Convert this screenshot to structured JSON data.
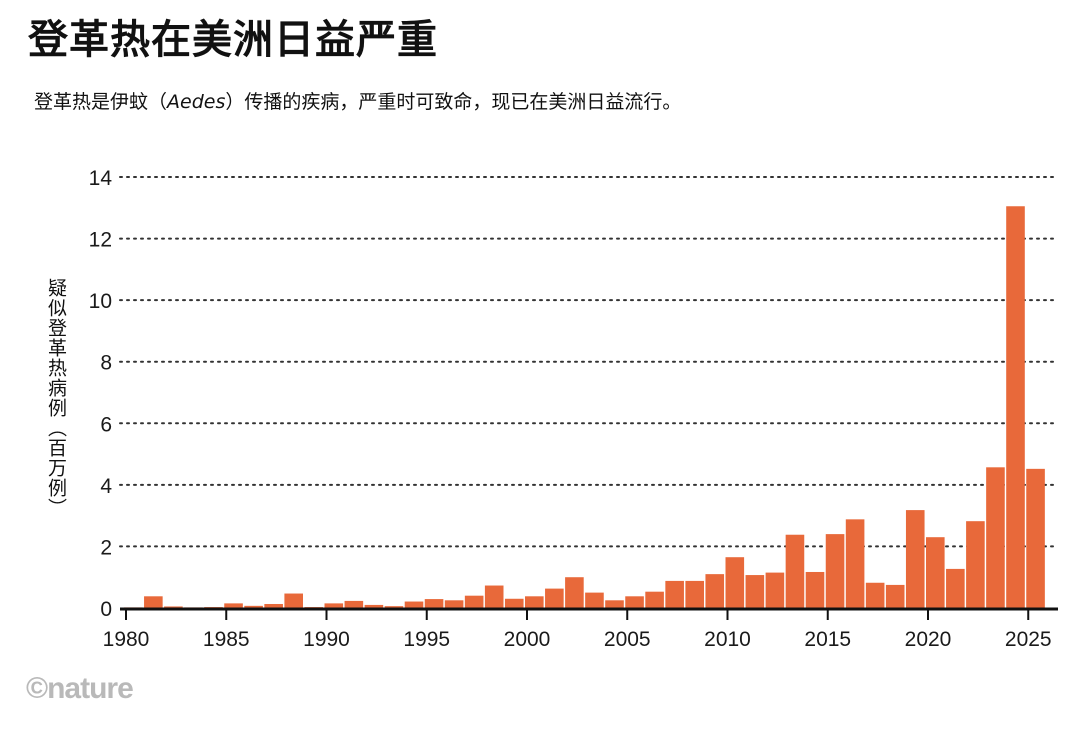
{
  "title": "登革热在美洲日益严重",
  "subtitle_before": "登革热是伊蚊（",
  "subtitle_italic": "Aedes",
  "subtitle_after": "）传播的疾病，严重时可致命，现已在美洲日益流行。",
  "credit": "©nature",
  "colors": {
    "bar": "#e8693a",
    "grid": "#333333",
    "axis": "#111111"
  },
  "chart_data": {
    "type": "bar",
    "title": "登革热在美洲日益严重",
    "ylabel": "疑似登革热病例（百万例）",
    "xlabel": "",
    "ylim": [
      0,
      14
    ],
    "yticks": [
      0,
      2,
      4,
      6,
      8,
      10,
      12,
      14
    ],
    "xticks": [
      1980,
      1985,
      1990,
      1995,
      2000,
      2005,
      2010,
      2015,
      2020,
      2025
    ],
    "grid": "horizontal-dotted",
    "x": [
      1980,
      1981,
      1982,
      1983,
      1984,
      1985,
      1986,
      1987,
      1988,
      1989,
      1990,
      1991,
      1992,
      1993,
      1994,
      1995,
      1996,
      1997,
      1998,
      1999,
      2000,
      2001,
      2002,
      2003,
      2004,
      2005,
      2006,
      2007,
      2008,
      2009,
      2010,
      2011,
      2012,
      2013,
      2014,
      2015,
      2016,
      2017,
      2018,
      2019,
      2020,
      2021,
      2022,
      2023,
      2024,
      2025
    ],
    "values": [
      0.02,
      0.38,
      0.05,
      0.02,
      0.03,
      0.15,
      0.07,
      0.13,
      0.47,
      0.03,
      0.15,
      0.23,
      0.1,
      0.06,
      0.21,
      0.29,
      0.25,
      0.4,
      0.73,
      0.3,
      0.38,
      0.63,
      1.0,
      0.5,
      0.25,
      0.38,
      0.53,
      0.88,
      0.88,
      1.1,
      1.65,
      1.07,
      1.15,
      2.38,
      1.17,
      2.4,
      2.88,
      0.82,
      0.75,
      3.18,
      2.3,
      1.27,
      2.82,
      4.57,
      13.05,
      4.52
    ]
  }
}
